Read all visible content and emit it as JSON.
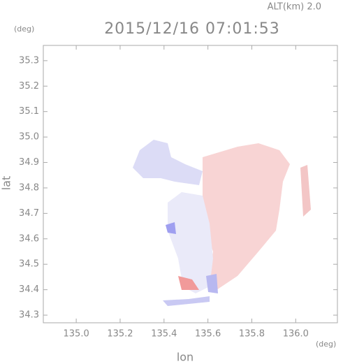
{
  "chart_data": {
    "type": "map",
    "title": "2015/12/16 07:01:53",
    "altitude_label": "ALT(km) 2.0",
    "xlabel": "lon",
    "ylabel": "lat",
    "x_unit": "(deg)",
    "y_unit": "(deg)",
    "xlim": [
      134.85,
      136.19
    ],
    "ylim": [
      34.27,
      35.36
    ],
    "xticks": [
      {
        "value": 135.0,
        "label": "135.0"
      },
      135.2,
      135.4,
      135.6,
      135.8,
      {
        "value": 136.0,
        "label": "136.0"
      }
    ],
    "yticks": [
      35.3,
      35.2,
      35.1,
      {
        "value": 35.0,
        "label": "35.0"
      },
      34.9,
      34.8,
      34.7,
      34.6,
      34.5,
      34.4,
      34.3
    ]
  }
}
